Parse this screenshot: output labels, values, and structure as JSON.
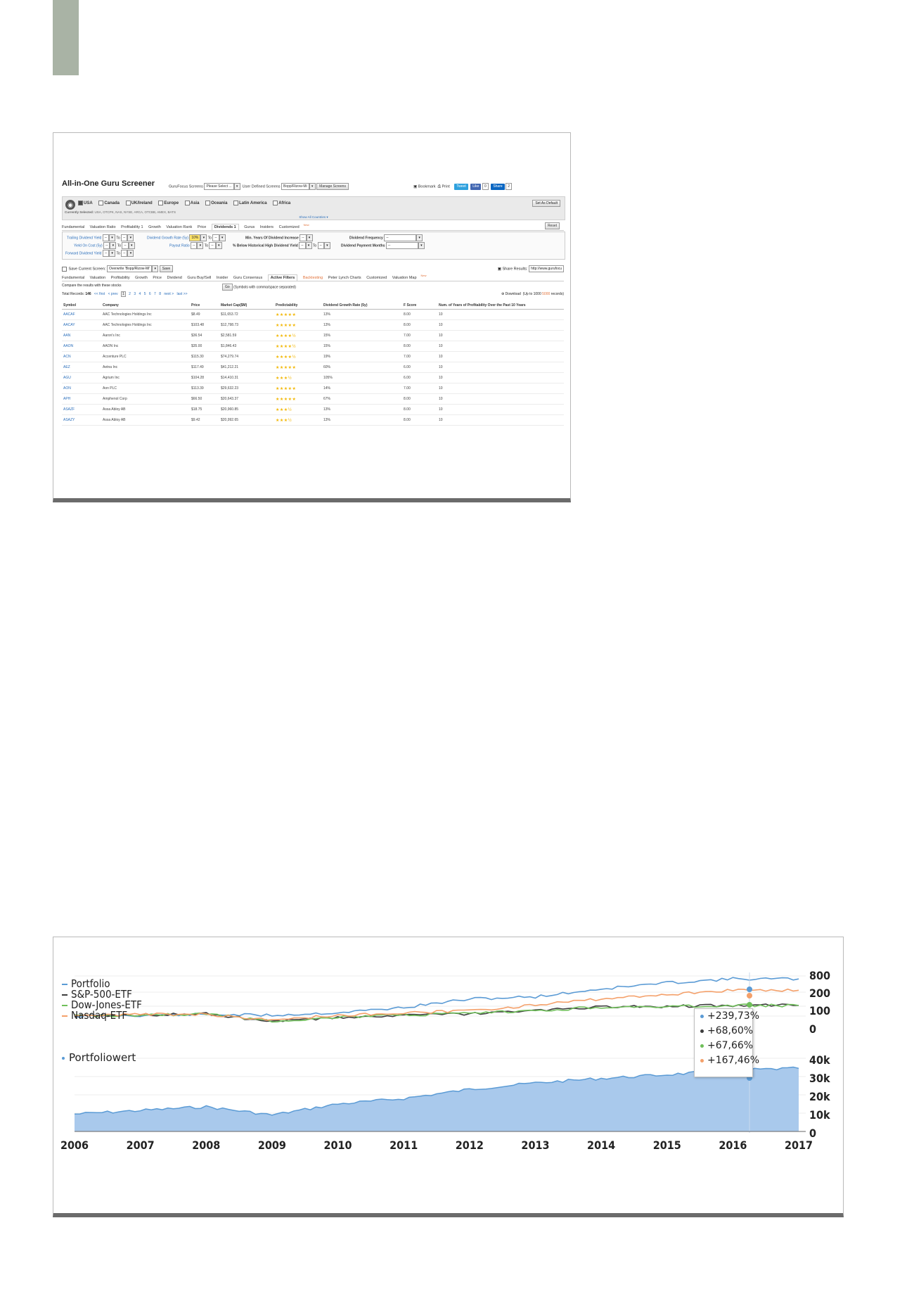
{
  "screener": {
    "title": "All-in-One Guru Screener",
    "gurufocus_screens_label": "GuruFocus Screens",
    "gurufocus_screens_value": "Please Select ...",
    "user_defined_label": "User Defined Screens",
    "user_defined_value": "Bopp/Rizow-Mi",
    "manage_screens": "Manage Screens",
    "bookmark": "Bookmark",
    "print": "Print",
    "tweet": "Tweet",
    "like": "Like",
    "like_count": "0",
    "share": "Share",
    "share_count": "2",
    "countries": [
      {
        "label": "USA",
        "checked": true
      },
      {
        "label": "Canada",
        "checked": false
      },
      {
        "label": "UK/Ireland",
        "checked": false
      },
      {
        "label": "Europe",
        "checked": false
      },
      {
        "label": "Asia",
        "checked": false
      },
      {
        "label": "Oceania",
        "checked": false
      },
      {
        "label": "Latin America",
        "checked": false
      },
      {
        "label": "Africa",
        "checked": false
      }
    ],
    "currently_selected_label": "Currently Selected:",
    "currently_selected_value": "USA, OTCPK, NAS, NYSE, ARCA, OTCBB, AMEX, BATS",
    "show_all": "Show All Countries ▾",
    "set_default": "Set As Default",
    "filter_tabs": [
      "Fundamental",
      "Valuation Ratio",
      "Profitability 1",
      "Growth",
      "Valuation Rank",
      "Price",
      "Dividends 1",
      "Gurus",
      "Insiders",
      "Customized"
    ],
    "filter_tabs_active": "Dividends 1",
    "customized_sup": "New",
    "reset": "Reset",
    "filters": {
      "trailing_yield": "Trailing Dividend Yield",
      "yield_on_cost": "Yield On Cost (5y)",
      "forward_yield": "Forward Dividend Yield",
      "growth_rate": "Dividend Growth Rate (5y)",
      "growth_rate_value": "10%",
      "payout_ratio": "Payout Ratio",
      "min_years": "Min. Years Of Dividend Increase",
      "below_high": "% Below Historical High Dividend Yield",
      "frequency": "Dividend Frequency",
      "payment_months": "Dividend Payment Months",
      "to": "To",
      "dash": "--"
    },
    "save_label": "Save Current Screen:",
    "save_value": "Overwrite 'Bopp/Rizow-Mi'",
    "save_btn": "Save",
    "share_results_label": "Share Results:",
    "share_results_url": "http://www.gurufocu",
    "result_tabs": [
      "Fundamental",
      "Valuation",
      "Profitability",
      "Growth",
      "Price",
      "Dividend",
      "Guru Buy/Sell",
      "Insider",
      "Guru Consensus",
      "Active Filters",
      "Backtesting",
      "Peter Lynch Charts",
      "Customized",
      "Valuation Map"
    ],
    "result_tabs_active": "Active Filters",
    "result_tabs_orange": "Backtesting",
    "valuation_map_sup": "New",
    "compare_label": "Compare the results with these stocks",
    "go_btn": "Go",
    "compare_hint": "(Symbols with comma/space separated)",
    "total_records_label": "Total Records:",
    "total_records_value": "146",
    "pager_first": "<< first",
    "pager_prev": "< prev",
    "pages": [
      "1",
      "2",
      "3",
      "4",
      "5",
      "6",
      "7",
      "8"
    ],
    "pager_next": "next >",
    "pager_last": "last >>",
    "download": "Download",
    "download_hint": "(Up to 1000",
    "download_counts": "5000",
    "records_word": "records)",
    "columns": [
      "Symbol",
      "Company",
      "Price",
      "Market Cap($M)",
      "Predictability",
      "Dividend Growth Rate (5y)",
      "F Score",
      "Num. of Years of Profitability Over the Past 10 Years"
    ],
    "rows": [
      {
        "symbol": "AACAF",
        "company": "AAC Technologies Holdings Inc",
        "price": "$8.49",
        "mcap": "$11,653.72",
        "stars": "★★★★★",
        "dgr": "13%",
        "fscore": "8.00",
        "years": "10"
      },
      {
        "symbol": "AACAY",
        "company": "AAC Technologies Holdings Inc",
        "price": "$103.48",
        "mcap": "$12,798.73",
        "stars": "★★★★★",
        "dgr": "13%",
        "fscore": "8.00",
        "years": "10"
      },
      {
        "symbol": "AAN",
        "company": "Aaron's Inc",
        "price": "$36.54",
        "mcap": "$2,581.59",
        "stars": "★★★★½",
        "dgr": "15%",
        "fscore": "7.00",
        "years": "10"
      },
      {
        "symbol": "AAON",
        "company": "AAON Inc",
        "price": "$35.00",
        "mcap": "$1,846.43",
        "stars": "★★★★½",
        "dgr": "15%",
        "fscore": "8.00",
        "years": "10"
      },
      {
        "symbol": "ACN",
        "company": "Accenture PLC",
        "price": "$115.30",
        "mcap": "$74,279.74",
        "stars": "★★★★½",
        "dgr": "19%",
        "fscore": "7.00",
        "years": "10"
      },
      {
        "symbol": "AEZ",
        "company": "Aetna Inc",
        "price": "$117.49",
        "mcap": "$41,212.21",
        "stars": "★★★★★",
        "dgr": "60%",
        "fscore": "6.00",
        "years": "10"
      },
      {
        "symbol": "AGU",
        "company": "Agrium Inc",
        "price": "$104.28",
        "mcap": "$14,410.31",
        "stars": "★★★½",
        "dgr": "105%",
        "fscore": "6.00",
        "years": "10"
      },
      {
        "symbol": "AON",
        "company": "Aon PLC",
        "price": "$113.39",
        "mcap": "$29,632.23",
        "stars": "★★★★★",
        "dgr": "14%",
        "fscore": "7.00",
        "years": "10"
      },
      {
        "symbol": "APH",
        "company": "Amphenol Corp",
        "price": "$66.50",
        "mcap": "$20,643.37",
        "stars": "★★★★★",
        "dgr": "67%",
        "fscore": "8.00",
        "years": "10"
      },
      {
        "symbol": "ASAZF",
        "company": "Assa Abloy AB",
        "price": "$18.75",
        "mcap": "$20,960.85",
        "stars": "★★★½",
        "dgr": "13%",
        "fscore": "8.00",
        "years": "10"
      },
      {
        "symbol": "ASAZY",
        "company": "Assa Abloy AB",
        "price": "$9.42",
        "mcap": "$20,992.65",
        "stars": "★★★½",
        "dgr": "13%",
        "fscore": "8.00",
        "years": "10"
      }
    ]
  },
  "chart_data": {
    "type": "line",
    "legend_top": [
      "Portfolio",
      "S&P-500-ETF",
      "Dow-Jones-ETF",
      "Nasdaq-ETF"
    ],
    "legend_bottom": "Portfoliowert",
    "x_labels": [
      "2006",
      "2007",
      "2008",
      "2009",
      "2010",
      "2011",
      "2012",
      "2013",
      "2014",
      "2015",
      "2016",
      "2017"
    ],
    "y_top_ticks": [
      "800",
      "200",
      "100",
      "0"
    ],
    "y_bottom_ticks": [
      "40k",
      "30k",
      "20k",
      "10k",
      "0"
    ],
    "colors": {
      "portfolio": "#5b9bd5",
      "sp500": "#3d3d3d",
      "dow": "#6fbf5a",
      "nasdaq": "#f4a06a",
      "area": "#a9c9ec"
    },
    "tooltip": [
      {
        "series": "Portfolio",
        "value": "+239,73%",
        "color": "#5b9bd5"
      },
      {
        "series": "S&P-500-ETF",
        "value": "+68,60%",
        "color": "#3d3d3d"
      },
      {
        "series": "Dow-Jones-ETF",
        "value": "+67,66%",
        "color": "#6fbf5a"
      },
      {
        "series": "Nasdaq-ETF",
        "value": "+167,46%",
        "color": "#f4a06a"
      }
    ],
    "series_top": [
      {
        "name": "Portfolio",
        "values": [
          0,
          5,
          10,
          5,
          22,
          55,
          110,
          125,
          175,
          215,
          240,
          240
        ]
      },
      {
        "name": "S&P-500-ETF",
        "values": [
          0,
          8,
          15,
          -35,
          -10,
          5,
          15,
          35,
          60,
          62,
          69,
          69
        ]
      },
      {
        "name": "Dow-Jones-ETF",
        "values": [
          0,
          8,
          14,
          -32,
          -8,
          6,
          16,
          34,
          58,
          60,
          68,
          68
        ]
      },
      {
        "name": "Nasdaq-ETF",
        "values": [
          0,
          10,
          12,
          -25,
          5,
          18,
          35,
          70,
          110,
          140,
          167,
          167
        ]
      }
    ],
    "series_bottom": {
      "name": "Portfoliowert",
      "values": [
        9500,
        11500,
        13500,
        9000,
        15000,
        18000,
        23000,
        26500,
        29000,
        31000,
        33500,
        34500
      ]
    }
  }
}
